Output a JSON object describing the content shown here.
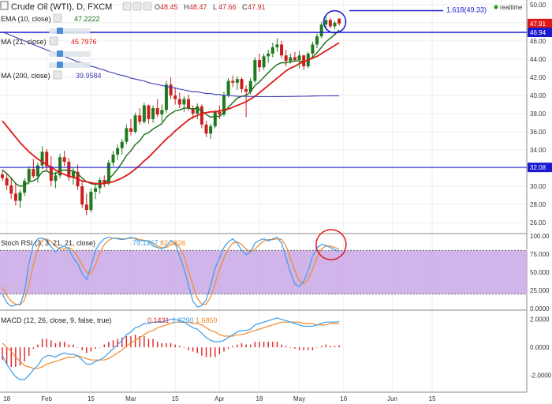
{
  "header": {
    "symbol_title": "Crude Oil (WTI), D, FXCM",
    "ohlc_labels": [
      "O",
      "H",
      "L",
      "C"
    ],
    "ohlc_values": [
      "48.45",
      "48.47",
      "47.66",
      "47.91"
    ],
    "realtime_label": "realtime"
  },
  "colors": {
    "up_candle": "#1f7a1f",
    "down_candle": "#cc1f1f",
    "ema10": "#1a6d1a",
    "ma21": "#e01818",
    "ma200": "#3c3cb8",
    "stoch_k": "#3b9de8",
    "stoch_d": "#f08a2c",
    "stoch_band": "#c9a7e6",
    "macd_line": "#3b9de8",
    "signal_line": "#f08a2c",
    "hist_pos": "#e02020",
    "hist_neg": "#e02020",
    "annotation_blue": "#1a1ad0",
    "annotation_red": "#e01818",
    "price_tag_red": "#e01818",
    "price_tag_blue": "#1a1ad0"
  },
  "indicators": [
    {
      "label": "EMA (10, close)",
      "value": "47.2222",
      "color": "#1a6d1a"
    },
    {
      "label": "MA (21, close)",
      "value": "45.7976",
      "color": "#e01818"
    },
    {
      "label": "MA (200, close)",
      "value": "39.9584",
      "color": "#3c3cb8"
    }
  ],
  "annotations": {
    "fib_label": "1.618(49.33)",
    "resistance_level": "46.94",
    "support_level": "32.08",
    "last_price": "47.91"
  },
  "stoch_panel": {
    "title": "Stoch RSI (3, 3, 21, 21, close)",
    "k_value": "79.1267",
    "d_value": "82.4826",
    "ticks": [
      "100.00",
      "75.000",
      "50.000",
      "25.000",
      "0.0000"
    ],
    "tick_values": [
      100,
      75,
      50,
      25,
      0
    ]
  },
  "macd_panel": {
    "title": "MACD (12, 26, close, 9, false, true)",
    "hist_value": "0.1431",
    "macd_value": "1.8290",
    "signal_value": "1.6859",
    "ticks": [
      "2.0000",
      "0.0000",
      "-2.0000"
    ],
    "tick_values": [
      2,
      0,
      -2
    ]
  },
  "chart_data": {
    "type": "candlestick",
    "title": "Crude Oil (WTI), D, FXCM",
    "price_ticks": [
      50,
      48,
      46,
      44,
      42,
      40,
      38,
      36,
      34,
      32,
      30,
      28,
      26
    ],
    "price_tick_labels": [
      "50.00",
      "48.00",
      "46.00",
      "44.00",
      "42.00",
      "40.00",
      "38.00",
      "36.00",
      "34.00",
      "32.00",
      "30.00",
      "28.00",
      "26.00"
    ],
    "ylim": [
      24.8,
      50.5
    ],
    "x_tick_labels": [
      "18",
      "Feb",
      "15",
      "Mar",
      "15",
      "Apr",
      "18",
      "May",
      "16",
      "Jun",
      "15"
    ],
    "x_tick_index": [
      1,
      10,
      20,
      29,
      39,
      49,
      58,
      67,
      77,
      88,
      97
    ],
    "candles": [
      {
        "o": 31.3,
        "h": 31.8,
        "l": 30.6,
        "c": 30.9
      },
      {
        "o": 30.9,
        "h": 31.5,
        "l": 29.6,
        "c": 30.1
      },
      {
        "o": 30.1,
        "h": 31.0,
        "l": 28.6,
        "c": 29.2
      },
      {
        "o": 29.2,
        "h": 30.4,
        "l": 27.9,
        "c": 28.4
      },
      {
        "o": 28.4,
        "h": 29.6,
        "l": 27.6,
        "c": 29.3
      },
      {
        "o": 29.3,
        "h": 30.9,
        "l": 28.9,
        "c": 30.6
      },
      {
        "o": 30.6,
        "h": 32.2,
        "l": 30.2,
        "c": 31.9
      },
      {
        "o": 31.9,
        "h": 33.0,
        "l": 30.9,
        "c": 31.1
      },
      {
        "o": 31.1,
        "h": 32.6,
        "l": 30.4,
        "c": 32.3
      },
      {
        "o": 32.3,
        "h": 34.4,
        "l": 31.9,
        "c": 33.8
      },
      {
        "o": 33.8,
        "h": 34.1,
        "l": 31.6,
        "c": 32.2
      },
      {
        "o": 32.2,
        "h": 33.3,
        "l": 30.0,
        "c": 30.6
      },
      {
        "o": 30.6,
        "h": 31.6,
        "l": 29.8,
        "c": 31.2
      },
      {
        "o": 31.2,
        "h": 33.6,
        "l": 30.9,
        "c": 33.2
      },
      {
        "o": 33.2,
        "h": 33.9,
        "l": 32.2,
        "c": 32.7
      },
      {
        "o": 32.7,
        "h": 33.1,
        "l": 30.6,
        "c": 31.0
      },
      {
        "o": 31.0,
        "h": 32.0,
        "l": 30.2,
        "c": 31.6
      },
      {
        "o": 31.6,
        "h": 32.4,
        "l": 29.6,
        "c": 30.0
      },
      {
        "o": 30.0,
        "h": 30.6,
        "l": 27.6,
        "c": 28.0
      },
      {
        "o": 28.0,
        "h": 29.2,
        "l": 26.8,
        "c": 27.4
      },
      {
        "o": 27.4,
        "h": 29.8,
        "l": 27.1,
        "c": 29.4
      },
      {
        "o": 29.4,
        "h": 30.4,
        "l": 28.6,
        "c": 29.8
      },
      {
        "o": 29.8,
        "h": 31.0,
        "l": 29.2,
        "c": 30.7
      },
      {
        "o": 30.7,
        "h": 31.2,
        "l": 29.9,
        "c": 30.3
      },
      {
        "o": 30.3,
        "h": 32.9,
        "l": 30.1,
        "c": 32.6
      },
      {
        "o": 32.6,
        "h": 33.9,
        "l": 32.2,
        "c": 33.5
      },
      {
        "o": 33.5,
        "h": 34.6,
        "l": 32.9,
        "c": 34.2
      },
      {
        "o": 34.2,
        "h": 35.2,
        "l": 33.5,
        "c": 34.9
      },
      {
        "o": 34.9,
        "h": 36.8,
        "l": 34.6,
        "c": 36.4
      },
      {
        "o": 36.4,
        "h": 37.4,
        "l": 35.6,
        "c": 36.0
      },
      {
        "o": 36.0,
        "h": 38.1,
        "l": 35.8,
        "c": 37.8
      },
      {
        "o": 37.8,
        "h": 38.6,
        "l": 36.8,
        "c": 37.1
      },
      {
        "o": 37.1,
        "h": 39.2,
        "l": 36.9,
        "c": 38.9
      },
      {
        "o": 38.9,
        "h": 39.0,
        "l": 36.9,
        "c": 37.4
      },
      {
        "o": 37.4,
        "h": 38.9,
        "l": 37.0,
        "c": 38.6
      },
      {
        "o": 38.6,
        "h": 39.6,
        "l": 37.6,
        "c": 37.9
      },
      {
        "o": 37.9,
        "h": 39.0,
        "l": 37.1,
        "c": 38.4
      },
      {
        "o": 38.4,
        "h": 41.6,
        "l": 38.1,
        "c": 41.2
      },
      {
        "o": 41.2,
        "h": 42.0,
        "l": 39.6,
        "c": 40.0
      },
      {
        "o": 40.0,
        "h": 40.9,
        "l": 39.0,
        "c": 39.6
      },
      {
        "o": 39.6,
        "h": 40.3,
        "l": 38.6,
        "c": 39.0
      },
      {
        "o": 39.0,
        "h": 39.9,
        "l": 38.2,
        "c": 39.6
      },
      {
        "o": 39.6,
        "h": 40.1,
        "l": 38.3,
        "c": 38.6
      },
      {
        "o": 38.6,
        "h": 38.9,
        "l": 37.4,
        "c": 38.0
      },
      {
        "o": 38.0,
        "h": 39.1,
        "l": 37.4,
        "c": 38.8
      },
      {
        "o": 38.8,
        "h": 39.0,
        "l": 36.4,
        "c": 36.8
      },
      {
        "o": 36.8,
        "h": 37.2,
        "l": 35.4,
        "c": 35.8
      },
      {
        "o": 35.8,
        "h": 36.9,
        "l": 35.2,
        "c": 36.6
      },
      {
        "o": 36.6,
        "h": 38.4,
        "l": 36.4,
        "c": 38.2
      },
      {
        "o": 38.2,
        "h": 38.9,
        "l": 37.4,
        "c": 37.9
      },
      {
        "o": 37.9,
        "h": 40.4,
        "l": 37.7,
        "c": 40.0
      },
      {
        "o": 40.0,
        "h": 41.9,
        "l": 39.8,
        "c": 41.6
      },
      {
        "o": 41.6,
        "h": 42.2,
        "l": 40.9,
        "c": 41.4
      },
      {
        "o": 41.4,
        "h": 42.1,
        "l": 40.6,
        "c": 41.8
      },
      {
        "o": 41.8,
        "h": 42.0,
        "l": 40.3,
        "c": 40.7
      },
      {
        "o": 40.7,
        "h": 41.1,
        "l": 37.6,
        "c": 40.4
      },
      {
        "o": 40.4,
        "h": 41.9,
        "l": 40.1,
        "c": 41.6
      },
      {
        "o": 41.6,
        "h": 44.2,
        "l": 41.4,
        "c": 43.9
      },
      {
        "o": 43.9,
        "h": 44.6,
        "l": 42.6,
        "c": 43.1
      },
      {
        "o": 43.1,
        "h": 44.6,
        "l": 42.8,
        "c": 44.3
      },
      {
        "o": 44.3,
        "h": 45.0,
        "l": 43.6,
        "c": 44.6
      },
      {
        "o": 44.6,
        "h": 45.8,
        "l": 44.2,
        "c": 45.3
      },
      {
        "o": 45.3,
        "h": 46.3,
        "l": 44.8,
        "c": 45.6
      },
      {
        "o": 45.6,
        "h": 46.0,
        "l": 44.1,
        "c": 44.4
      },
      {
        "o": 44.4,
        "h": 45.0,
        "l": 43.2,
        "c": 43.8
      },
      {
        "o": 43.8,
        "h": 44.6,
        "l": 43.5,
        "c": 44.2
      },
      {
        "o": 44.2,
        "h": 44.8,
        "l": 43.7,
        "c": 43.9
      },
      {
        "o": 43.9,
        "h": 44.9,
        "l": 43.0,
        "c": 44.4
      },
      {
        "o": 44.4,
        "h": 44.5,
        "l": 42.8,
        "c": 43.2
      },
      {
        "o": 43.2,
        "h": 44.8,
        "l": 43.0,
        "c": 44.6
      },
      {
        "o": 44.6,
        "h": 45.9,
        "l": 44.2,
        "c": 45.6
      },
      {
        "o": 45.6,
        "h": 46.8,
        "l": 45.2,
        "c": 46.5
      },
      {
        "o": 46.5,
        "h": 48.1,
        "l": 46.3,
        "c": 47.8
      },
      {
        "o": 47.8,
        "h": 48.7,
        "l": 47.2,
        "c": 48.3
      },
      {
        "o": 48.3,
        "h": 48.5,
        "l": 47.4,
        "c": 47.6
      },
      {
        "o": 47.6,
        "h": 48.2,
        "l": 47.3,
        "c": 48.0
      },
      {
        "o": 48.45,
        "h": 48.47,
        "l": 47.66,
        "c": 47.91
      }
    ],
    "series": [
      {
        "name": "EMA (10, close)",
        "values": [
          31.8,
          31.4,
          30.9,
          30.3,
          30.0,
          30.1,
          30.5,
          30.6,
          30.9,
          31.6,
          31.7,
          31.4,
          31.4,
          31.7,
          31.8,
          31.7,
          31.7,
          31.4,
          30.9,
          30.5,
          30.3,
          30.2,
          30.3,
          30.3,
          30.8,
          31.3,
          31.9,
          32.6,
          33.4,
          33.9,
          34.6,
          35.0,
          35.7,
          35.9,
          36.3,
          36.6,
          36.9,
          37.6,
          38.0,
          38.3,
          38.4,
          38.6,
          38.6,
          38.5,
          38.6,
          38.3,
          37.9,
          37.6,
          37.7,
          37.7,
          38.1,
          38.7,
          39.2,
          39.7,
          39.9,
          40.0,
          40.4,
          41.1,
          41.5,
          42.0,
          42.5,
          43.0,
          43.4,
          43.6,
          43.6,
          43.7,
          43.8,
          43.8,
          43.7,
          43.9,
          44.2,
          44.7,
          45.3,
          45.9,
          46.3,
          46.7,
          47.2
        ]
      },
      {
        "name": "MA (21, close)",
        "values": [
          37.2,
          36.6,
          36.0,
          35.4,
          34.8,
          34.3,
          33.8,
          33.4,
          33.0,
          32.7,
          32.4,
          32.1,
          31.8,
          31.5,
          31.3,
          31.1,
          31.0,
          30.8,
          30.6,
          30.5,
          30.4,
          30.3,
          30.3,
          30.3,
          30.4,
          30.5,
          30.7,
          30.9,
          31.2,
          31.5,
          31.9,
          32.3,
          32.8,
          33.2,
          33.7,
          34.2,
          34.7,
          35.2,
          35.6,
          36.1,
          36.5,
          36.9,
          37.3,
          37.6,
          37.8,
          38.0,
          38.1,
          38.2,
          38.2,
          38.3,
          38.4,
          38.5,
          38.7,
          38.9,
          39.1,
          39.3,
          39.6,
          39.9,
          40.3,
          40.7,
          41.1,
          41.5,
          41.9,
          42.3,
          42.7,
          43.0,
          43.2,
          43.5,
          43.7,
          43.9,
          44.1,
          44.3,
          44.6,
          44.9,
          45.2,
          45.5,
          45.8
        ]
      },
      {
        "name": "MA (200, close)",
        "values": [
          47.0,
          46.8,
          46.6,
          46.4,
          46.2,
          46.0,
          45.8,
          45.6,
          45.4,
          45.2,
          45.0,
          44.8,
          44.6,
          44.4,
          44.3,
          44.1,
          43.9,
          43.7,
          43.6,
          43.4,
          43.2,
          43.1,
          42.9,
          42.8,
          42.6,
          42.5,
          42.3,
          42.2,
          42.1,
          41.9,
          41.8,
          41.7,
          41.6,
          41.4,
          41.3,
          41.2,
          41.1,
          41.0,
          40.9,
          40.8,
          40.7,
          40.6,
          40.5,
          40.4,
          40.4,
          40.3,
          40.2,
          40.2,
          40.1,
          40.1,
          40.0,
          40.0,
          39.95,
          39.9,
          39.9,
          39.9,
          39.88,
          39.87,
          39.86,
          39.86,
          39.86,
          39.86,
          39.87,
          39.87,
          39.88,
          39.88,
          39.89,
          39.9,
          39.91,
          39.92,
          39.93,
          39.94,
          39.95,
          39.95,
          39.96,
          39.96,
          39.96
        ]
      }
    ],
    "stoch_rsi": {
      "ylim": [
        0,
        100
      ],
      "k": [
        20,
        8,
        3,
        5,
        6,
        22,
        62,
        88,
        96,
        97,
        94,
        85,
        78,
        84,
        86,
        82,
        70,
        62,
        48,
        40,
        58,
        80,
        90,
        96,
        98,
        97,
        96,
        95,
        96,
        98,
        96,
        93,
        94,
        92,
        86,
        84,
        82,
        86,
        94,
        90,
        72,
        55,
        32,
        10,
        2,
        4,
        12,
        32,
        56,
        70,
        84,
        92,
        96,
        90,
        80,
        74,
        78,
        90,
        94,
        96,
        93,
        96,
        98,
        90,
        70,
        50,
        34,
        30,
        38,
        52,
        72,
        84,
        88,
        87,
        84,
        81,
        79
      ],
      "d": [
        30,
        18,
        10,
        6,
        5,
        12,
        32,
        60,
        82,
        94,
        96,
        92,
        86,
        82,
        82,
        84,
        80,
        72,
        60,
        50,
        48,
        60,
        76,
        88,
        94,
        97,
        97,
        96,
        96,
        97,
        97,
        95,
        94,
        93,
        90,
        86,
        84,
        84,
        88,
        90,
        84,
        72,
        52,
        32,
        14,
        6,
        6,
        16,
        34,
        54,
        70,
        82,
        90,
        92,
        88,
        82,
        78,
        82,
        88,
        93,
        95,
        95,
        96,
        95,
        86,
        70,
        52,
        38,
        34,
        40,
        54,
        70,
        82,
        86,
        86,
        84,
        82
      ]
    },
    "macd": {
      "ylim": [
        -3.2,
        2.6
      ],
      "macd": [
        -0.6,
        -1.2,
        -1.7,
        -2.1,
        -2.3,
        -2.3,
        -2.0,
        -1.6,
        -1.3,
        -0.8,
        -0.6,
        -0.6,
        -0.7,
        -0.5,
        -0.4,
        -0.5,
        -0.5,
        -0.6,
        -0.9,
        -1.2,
        -1.2,
        -1.0,
        -0.9,
        -0.7,
        -0.4,
        -0.1,
        0.2,
        0.5,
        0.9,
        1.1,
        1.4,
        1.5,
        1.7,
        1.7,
        1.8,
        1.8,
        1.8,
        1.9,
        2.0,
        2.0,
        1.9,
        1.8,
        1.6,
        1.4,
        1.3,
        1.0,
        0.7,
        0.5,
        0.4,
        0.4,
        0.5,
        0.7,
        0.9,
        1.1,
        1.2,
        1.2,
        1.3,
        1.6,
        1.7,
        1.8,
        1.9,
        2.0,
        2.1,
        2.0,
        1.9,
        1.8,
        1.7,
        1.6,
        1.5,
        1.5,
        1.5,
        1.6,
        1.7,
        1.8,
        1.8,
        1.8,
        1.83
      ],
      "signal": [
        0.3,
        0.0,
        -0.3,
        -0.7,
        -1.0,
        -1.3,
        -1.4,
        -1.5,
        -1.5,
        -1.4,
        -1.2,
        -1.1,
        -1.0,
        -0.9,
        -0.8,
        -0.7,
        -0.7,
        -0.6,
        -0.7,
        -0.8,
        -0.9,
        -0.9,
        -0.9,
        -0.9,
        -0.8,
        -0.6,
        -0.4,
        -0.2,
        0.1,
        0.3,
        0.5,
        0.7,
        0.9,
        1.1,
        1.2,
        1.4,
        1.5,
        1.6,
        1.7,
        1.8,
        1.8,
        1.8,
        1.8,
        1.7,
        1.7,
        1.6,
        1.4,
        1.2,
        1.1,
        0.9,
        0.8,
        0.8,
        0.8,
        0.9,
        0.9,
        1.0,
        1.1,
        1.2,
        1.3,
        1.4,
        1.5,
        1.6,
        1.7,
        1.8,
        1.8,
        1.8,
        1.8,
        1.8,
        1.7,
        1.7,
        1.7,
        1.6,
        1.6,
        1.6,
        1.7,
        1.7,
        1.69
      ]
    }
  }
}
